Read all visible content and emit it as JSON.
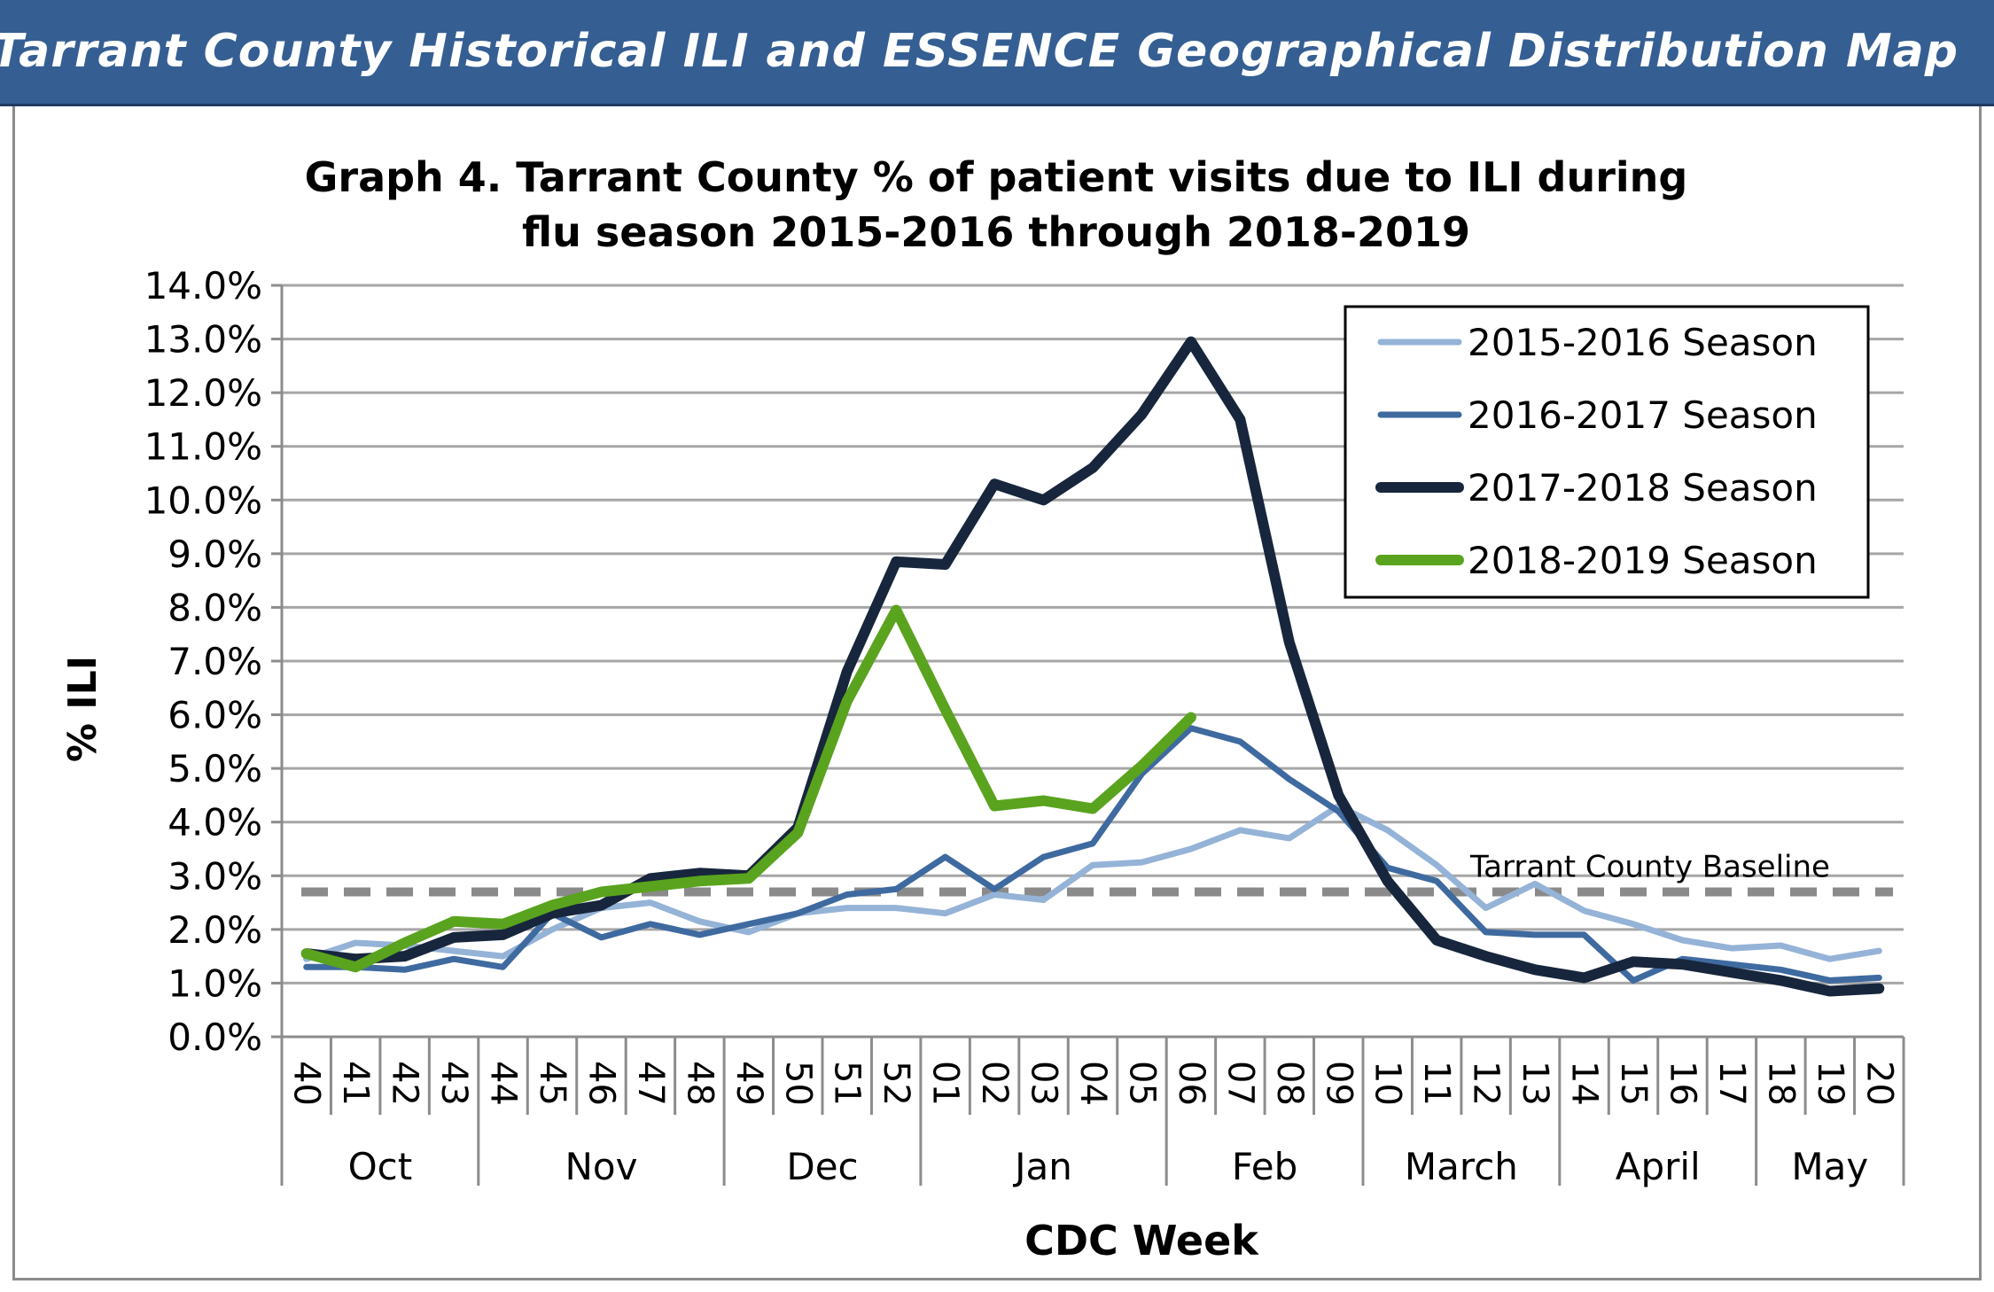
{
  "header": {
    "banner_title": "Tarrant County Historical ILI and ESSENCE Geographical Distribution Map"
  },
  "colors": {
    "banner": "#355f93",
    "s2015": "#95b3d7",
    "s2016": "#3f6aa0",
    "s2017": "#17263c",
    "s2018": "#5aa31e",
    "baseline": "#8a8a8a",
    "grid": "#a6a6a6"
  },
  "chart_data": {
    "type": "line",
    "title_line1": "Graph 4. Tarrant County % of patient visits due to ILI during",
    "title_line2": "flu season 2015-2016 through 2018-2019",
    "xlabel": "CDC Week",
    "ylabel": "% ILI",
    "ylim": [
      0,
      14
    ],
    "y_ticks": [
      "0.0%",
      "1.0%",
      "2.0%",
      "3.0%",
      "4.0%",
      "5.0%",
      "6.0%",
      "7.0%",
      "8.0%",
      "9.0%",
      "10.0%",
      "11.0%",
      "12.0%",
      "13.0%",
      "14.0%"
    ],
    "grid": true,
    "legend_position": "top-right",
    "categories": [
      "40",
      "41",
      "42",
      "43",
      "44",
      "45",
      "46",
      "47",
      "48",
      "49",
      "50",
      "51",
      "52",
      "01",
      "02",
      "03",
      "04",
      "05",
      "06",
      "07",
      "08",
      "09",
      "10",
      "11",
      "12",
      "13",
      "14",
      "15",
      "16",
      "17",
      "18",
      "19",
      "20"
    ],
    "months": [
      {
        "label": "Oct",
        "start": 0,
        "end": 4
      },
      {
        "label": "Nov",
        "start": 4,
        "end": 9
      },
      {
        "label": "Dec",
        "start": 9,
        "end": 13
      },
      {
        "label": "Jan",
        "start": 13,
        "end": 18
      },
      {
        "label": "Feb",
        "start": 18,
        "end": 22
      },
      {
        "label": "March",
        "start": 22,
        "end": 26
      },
      {
        "label": "April",
        "start": 26,
        "end": 30
      },
      {
        "label": "May",
        "start": 30,
        "end": 33
      }
    ],
    "baseline": {
      "label": "Tarrant County Baseline",
      "value": 2.7
    },
    "series": [
      {
        "name": "2015-2016 Season",
        "color_key": "s2015",
        "width": 7,
        "values": [
          1.45,
          1.75,
          1.7,
          1.6,
          1.5,
          2.0,
          2.4,
          2.5,
          2.15,
          1.95,
          2.3,
          2.4,
          2.4,
          2.3,
          2.65,
          2.55,
          3.2,
          3.25,
          3.5,
          3.85,
          3.7,
          4.3,
          3.85,
          3.2,
          2.4,
          2.85,
          2.35,
          2.1,
          1.8,
          1.65,
          1.7,
          1.45,
          1.6
        ]
      },
      {
        "name": "2016-2017 Season",
        "color_key": "s2016",
        "width": 7,
        "values": [
          1.3,
          1.3,
          1.25,
          1.45,
          1.3,
          2.3,
          1.85,
          2.1,
          1.9,
          2.1,
          2.3,
          2.65,
          2.75,
          3.35,
          2.75,
          3.35,
          3.6,
          4.9,
          5.75,
          5.5,
          4.8,
          4.2,
          3.15,
          2.9,
          1.95,
          1.9,
          1.9,
          1.05,
          1.45,
          1.35,
          1.25,
          1.05,
          1.1
        ]
      },
      {
        "name": "2017-2018 Season",
        "color_key": "s2017",
        "width": 12,
        "values": [
          1.55,
          1.45,
          1.5,
          1.85,
          1.9,
          2.3,
          2.45,
          2.95,
          3.05,
          3.0,
          3.9,
          6.8,
          8.85,
          8.8,
          10.3,
          10.0,
          10.6,
          11.6,
          12.95,
          11.5,
          7.35,
          4.5,
          2.9,
          1.8,
          1.5,
          1.25,
          1.1,
          1.4,
          1.35,
          1.2,
          1.05,
          0.85,
          0.9
        ]
      },
      {
        "name": "2018-2019 Season",
        "color_key": "s2018",
        "width": 12,
        "values": [
          1.55,
          1.3,
          1.75,
          2.15,
          2.1,
          2.45,
          2.7,
          2.8,
          2.9,
          2.95,
          3.8,
          6.25,
          7.95,
          6.1,
          4.3,
          4.4,
          4.25,
          5.05,
          5.95,
          null,
          null,
          null,
          null,
          null,
          null,
          null,
          null,
          null,
          null,
          null,
          null,
          null,
          null
        ]
      }
    ]
  }
}
